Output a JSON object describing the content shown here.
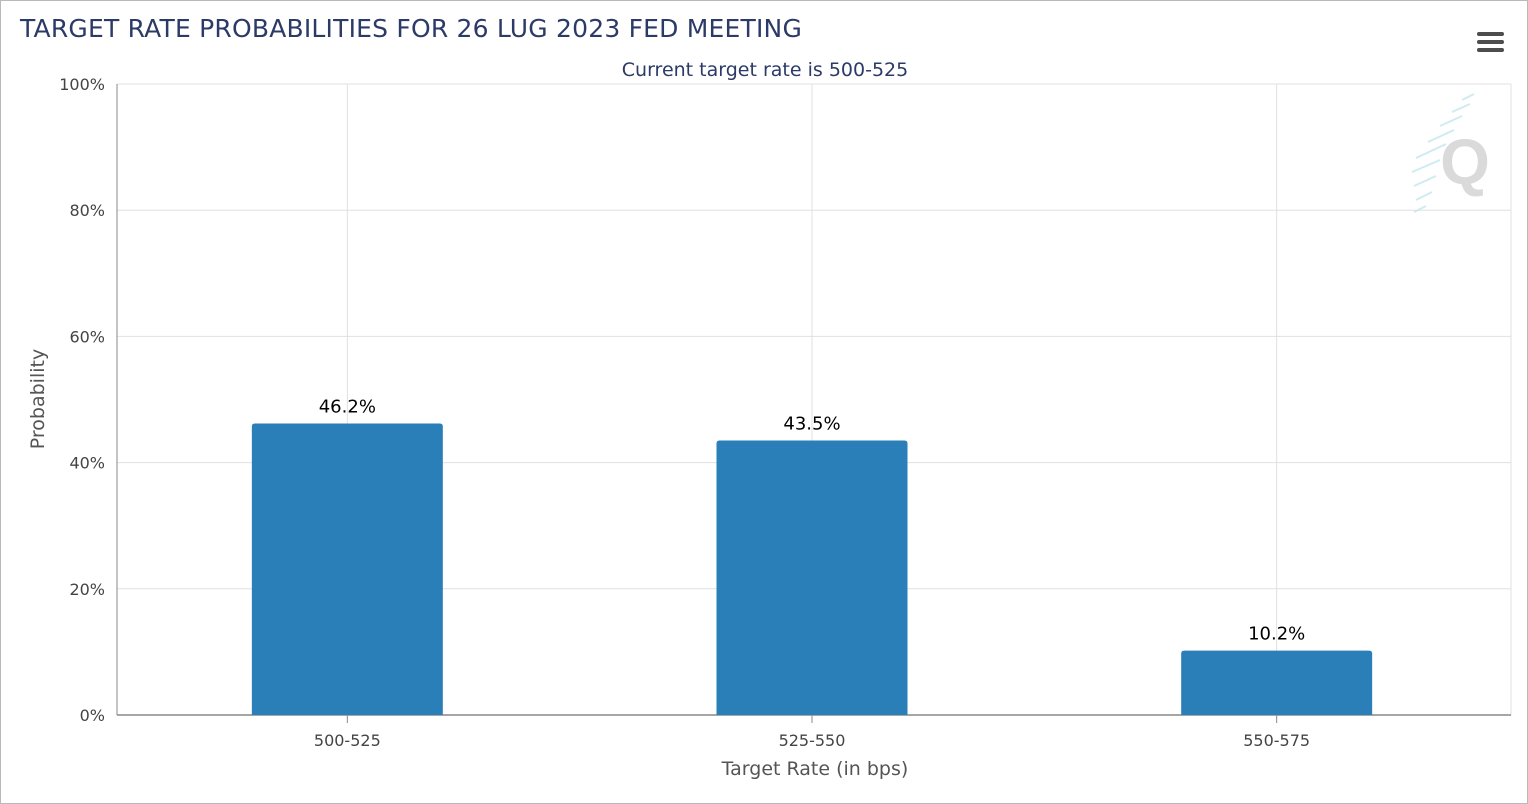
{
  "header": {
    "title": "TARGET RATE PROBABILITIES FOR 26 LUG 2023 FED MEETING",
    "menu_icon": "hamburger-menu-icon"
  },
  "watermark_icon": "q-logo-watermark",
  "colors": {
    "bar": "#2a7fb8",
    "title": "#2b3a67",
    "grid": "#e0e0e0",
    "axis": "#888888"
  },
  "chart_data": {
    "type": "bar",
    "title": "TARGET RATE PROBABILITIES FOR 26 LUG 2023 FED MEETING",
    "subtitle": "Current target rate is 500-525",
    "categories": [
      "500-525",
      "525-550",
      "550-575"
    ],
    "values": [
      46.2,
      43.5,
      10.2
    ],
    "data_labels": [
      "46.2%",
      "43.5%",
      "10.2%"
    ],
    "xlabel": "Target Rate (in bps)",
    "ylabel": "Probability",
    "ylim": [
      0,
      100
    ],
    "yticks": [
      0,
      20,
      40,
      60,
      80,
      100
    ],
    "ytick_labels": [
      "0%",
      "20%",
      "40%",
      "60%",
      "80%",
      "100%"
    ],
    "grid": true,
    "legend": "none"
  }
}
